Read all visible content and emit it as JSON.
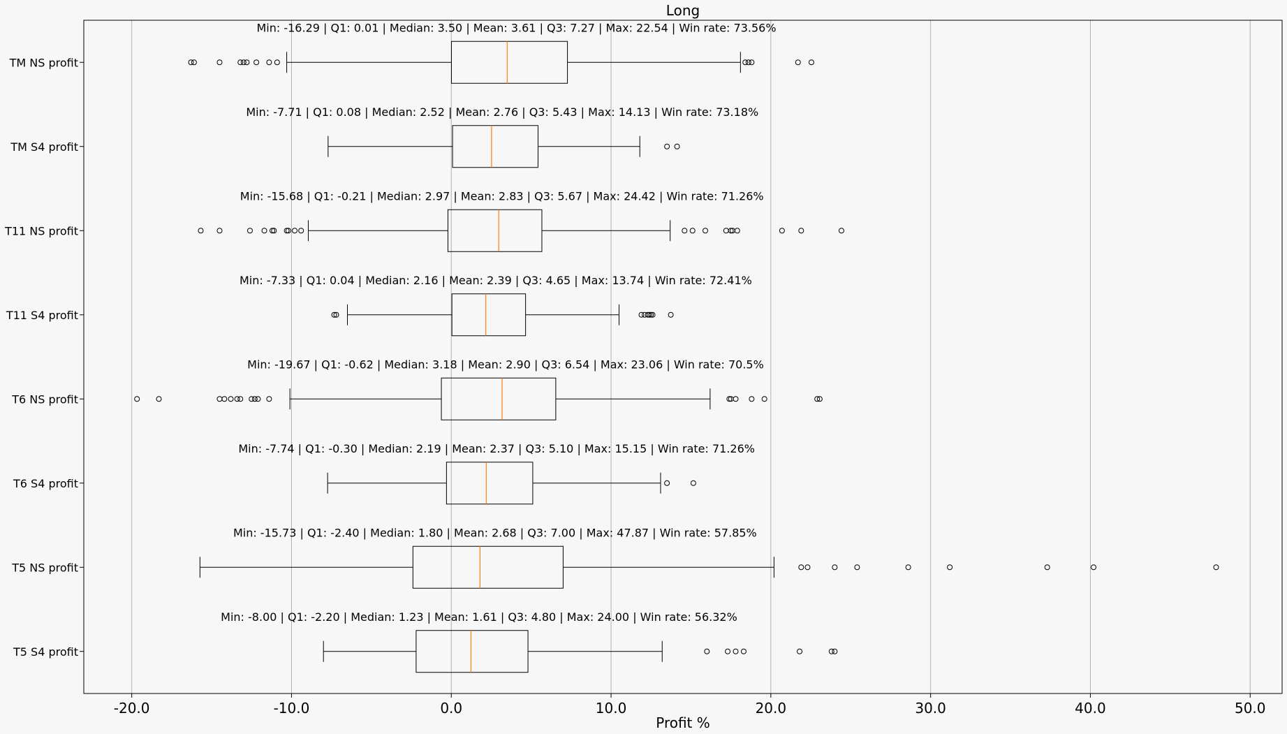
{
  "chart_data": {
    "type": "boxplot",
    "title": "Long",
    "xlabel": "Profit %",
    "ylabel": "",
    "xlim": [
      -23,
      52
    ],
    "xticks": [
      -20,
      -10,
      0,
      10,
      20,
      30,
      40,
      50
    ],
    "xtick_labels": [
      "-20.0",
      "-10.0",
      "0.0",
      "10.0",
      "20.0",
      "30.0",
      "40.0",
      "50.0"
    ],
    "grid": "vertical",
    "colors": {
      "box": "#000000",
      "median": "#ff7f0e",
      "grid": "#b0b0b0",
      "background": "#f7f7f7"
    },
    "categories": [
      {
        "name": "TM NS profit",
        "annotation": "Min: -16.29 | Q1: 0.01 | Median: 3.50 | Mean: 3.61 | Q3: 7.27 | Max: 22.54 | Win rate: 73.56%",
        "whisker_low": -10.3,
        "q1": 0.01,
        "median": 3.5,
        "q3": 7.27,
        "whisker_high": 18.1,
        "outliers": [
          -16.29,
          -16.1,
          -14.5,
          -13.2,
          -13.0,
          -12.8,
          -12.2,
          -11.4,
          -10.9,
          18.4,
          18.6,
          18.8,
          21.7,
          22.54
        ]
      },
      {
        "name": "TM S4 profit",
        "annotation": "Min: -7.71 | Q1: 0.08 | Median: 2.52 | Mean: 2.76 | Q3: 5.43 | Max: 14.13 | Win rate: 73.18%",
        "whisker_low": -7.71,
        "q1": 0.08,
        "median": 2.52,
        "q3": 5.43,
        "whisker_high": 11.8,
        "outliers": [
          13.5,
          14.13
        ]
      },
      {
        "name": "T11 NS profit",
        "annotation": "Min: -15.68 | Q1: -0.21 | Median: 2.97 | Mean: 2.83 | Q3: 5.67 | Max: 24.42 | Win rate: 71.26%",
        "whisker_low": -8.95,
        "q1": -0.21,
        "median": 2.97,
        "q3": 5.67,
        "whisker_high": 13.7,
        "outliers": [
          -15.68,
          -14.5,
          -12.6,
          -11.7,
          -11.2,
          -11.1,
          -10.3,
          -10.2,
          -9.8,
          -9.4,
          14.6,
          15.1,
          15.9,
          17.2,
          17.5,
          17.6,
          17.9,
          20.7,
          21.9,
          24.42
        ]
      },
      {
        "name": "T11 S4 profit",
        "annotation": "Min: -7.33 | Q1: 0.04 | Median: 2.16 | Mean: 2.39 | Q3: 4.65 | Max: 13.74 | Win rate: 72.41%",
        "whisker_low": -6.5,
        "q1": 0.04,
        "median": 2.16,
        "q3": 4.65,
        "whisker_high": 10.5,
        "outliers": [
          -7.33,
          -7.2,
          11.9,
          12.1,
          12.3,
          12.4,
          12.5,
          12.6,
          13.74
        ]
      },
      {
        "name": "T6 NS profit",
        "annotation": "Min: -19.67 | Q1: -0.62 | Median: 3.18 | Mean: 2.90 | Q3: 6.54 | Max: 23.06 | Win rate: 70.5%",
        "whisker_low": -10.1,
        "q1": -0.62,
        "median": 3.18,
        "q3": 6.54,
        "whisker_high": 16.2,
        "outliers": [
          -19.67,
          -18.3,
          -14.5,
          -14.2,
          -13.8,
          -13.4,
          -13.2,
          -12.5,
          -12.3,
          -12.1,
          -11.4,
          17.4,
          17.5,
          17.8,
          18.8,
          19.6,
          22.9,
          23.06
        ]
      },
      {
        "name": "T6 S4 profit",
        "annotation": "Min: -7.74 | Q1: -0.30 | Median: 2.19 | Mean: 2.37 | Q3: 5.10 | Max: 15.15 | Win rate: 71.26%",
        "whisker_low": -7.74,
        "q1": -0.3,
        "median": 2.19,
        "q3": 5.1,
        "whisker_high": 13.1,
        "outliers": [
          13.5,
          15.15
        ]
      },
      {
        "name": "T5 NS profit",
        "annotation": "Min: -15.73 | Q1: -2.40 | Median: 1.80 | Mean: 2.68 | Q3: 7.00 | Max: 47.87 | Win rate: 57.85%",
        "whisker_low": -15.73,
        "q1": -2.4,
        "median": 1.8,
        "q3": 7.0,
        "whisker_high": 20.2,
        "outliers": [
          21.9,
          22.3,
          24.0,
          25.4,
          28.6,
          31.2,
          37.3,
          40.2,
          47.87
        ]
      },
      {
        "name": "T5 S4 profit",
        "annotation": "Min: -8.00 | Q1: -2.20 | Median: 1.23 | Mean: 1.61 | Q3: 4.80 | Max: 24.00 | Win rate: 56.32%",
        "whisker_low": -8.0,
        "q1": -2.2,
        "median": 1.23,
        "q3": 4.8,
        "whisker_high": 13.2,
        "outliers": [
          16.0,
          17.3,
          17.8,
          18.3,
          21.8,
          23.8,
          24.0
        ]
      }
    ]
  }
}
